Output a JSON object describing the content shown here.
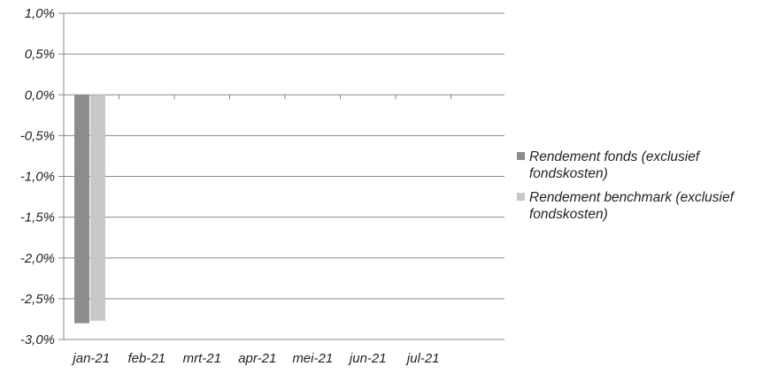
{
  "chart_data": {
    "type": "bar",
    "title": "",
    "xlabel": "",
    "ylabel": "",
    "categories": [
      "jan-21",
      "feb-21",
      "mrt-21",
      "apr-21",
      "mei-21",
      "jun-21",
      "jul-21"
    ],
    "series": [
      {
        "name": "Rendement fonds (exclusief fondskosten)",
        "color": "#8c8c8c",
        "values": [
          -2.8,
          null,
          null,
          null,
          null,
          null,
          null
        ]
      },
      {
        "name": "Rendement benchmark (exclusief fondskosten)",
        "color": "#c8c8c8",
        "values": [
          -2.77,
          null,
          null,
          null,
          null,
          null,
          null
        ]
      }
    ],
    "ylim": [
      -3.0,
      1.0
    ],
    "yticks": [
      1.0,
      0.5,
      0.0,
      -0.5,
      -1.0,
      -1.5,
      -2.0,
      -2.5,
      -3.0
    ],
    "ytick_labels": [
      "1,0%",
      "0,5%",
      "0,0%",
      "-0,5%",
      "-1,0%",
      "-1,5%",
      "-2,0%",
      "-2,5%",
      "-3,0%"
    ],
    "grid": true,
    "legend_position": "right"
  }
}
